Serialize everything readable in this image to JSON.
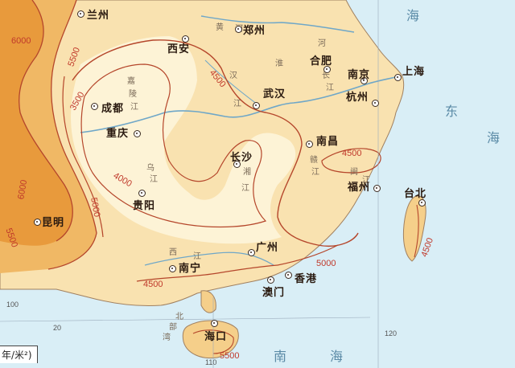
{
  "colors": {
    "sea": "#d9eef6",
    "zone_lt_3500": "#fdf3d6",
    "zone_3500_4500": "#f9e2b0",
    "zone_4500_5000": "#f5cf8a",
    "zone_5000_5500": "#f0b865",
    "zone_gt_6000": "#e89a3c",
    "isoline": "#b5462b"
  },
  "cities": [
    {
      "name": "兰州"
    },
    {
      "name": "西安"
    },
    {
      "name": "郑州"
    },
    {
      "name": "合肥"
    },
    {
      "name": "南京"
    },
    {
      "name": "上海"
    },
    {
      "name": "杭州"
    },
    {
      "name": "成都"
    },
    {
      "name": "重庆"
    },
    {
      "name": "武汉"
    },
    {
      "name": "长沙"
    },
    {
      "name": "南昌"
    },
    {
      "name": "福州"
    },
    {
      "name": "台北"
    },
    {
      "name": "贵阳"
    },
    {
      "name": "昆明"
    },
    {
      "name": "广州"
    },
    {
      "name": "南宁"
    },
    {
      "name": "香港"
    },
    {
      "name": "澳门"
    },
    {
      "name": "海口"
    }
  ],
  "isolines": [
    {
      "label": "6000"
    },
    {
      "label": "5500"
    },
    {
      "label": "4500"
    },
    {
      "label": "3500"
    },
    {
      "label": "4000"
    },
    {
      "label": "5000"
    },
    {
      "label": "6000"
    },
    {
      "label": "5500"
    },
    {
      "label": "4500"
    },
    {
      "label": "4500"
    },
    {
      "label": "5000"
    },
    {
      "label": "4500"
    },
    {
      "label": "5500"
    }
  ],
  "seas": [
    {
      "name": "海"
    },
    {
      "name": "东"
    },
    {
      "name": "海"
    },
    {
      "name": "南"
    },
    {
      "name": "海"
    }
  ],
  "river_labels": [
    "黄",
    "河",
    "淮",
    "河",
    "汉",
    "江",
    "长",
    "江",
    "嘉",
    "陵",
    "江",
    "乌",
    "江",
    "湘",
    "江",
    "赣",
    "江",
    "闽",
    "江",
    "西",
    "江",
    "北",
    "部",
    "湾"
  ],
  "coordinates": [
    "100",
    "120",
    "20",
    "110"
  ],
  "legend": {
    "text": "年/米²)"
  }
}
